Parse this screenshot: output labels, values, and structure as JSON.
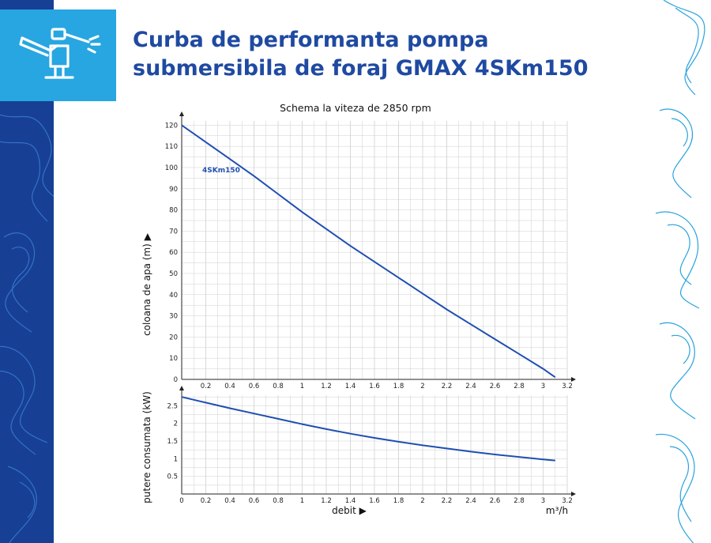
{
  "header": {
    "title_line1": "Curba de performanta pompa",
    "title_line2": "submersibila de foraj GMAX 4SKm150",
    "logo_icon": "sprinkler-icon"
  },
  "colors": {
    "title": "#1f4aa1",
    "left_strip": "#173f94",
    "logo_box": "#27a6e1",
    "contour_light": "#29a3dc",
    "curve": "#1f4fb0",
    "grid": "#cfcfcf"
  },
  "chart_data": [
    {
      "type": "line",
      "title": "Schema la viteza de 2850 rpm",
      "xlabel": "debit ▶",
      "xunit": "m³/h",
      "ylabel": "coloana de apa (m) ▶",
      "xlim": [
        0,
        3.2
      ],
      "ylim": [
        0,
        122
      ],
      "x_ticks": [
        "0.2",
        "0.4",
        "0.6",
        "0.8",
        "1",
        "1.2",
        "1.4",
        "1.6",
        "1.8",
        "2",
        "2.2",
        "2.4",
        "2.6",
        "2.8",
        "3",
        "3.2"
      ],
      "y_ticks": [
        "0",
        "10",
        "20",
        "30",
        "40",
        "50",
        "60",
        "70",
        "80",
        "90",
        "100",
        "110",
        "120"
      ],
      "grid": true,
      "series": [
        {
          "name": "4SKm150",
          "x": [
            0,
            0.2,
            0.4,
            0.6,
            0.8,
            1.0,
            1.2,
            1.4,
            1.6,
            1.8,
            2.0,
            2.2,
            2.4,
            2.6,
            2.8,
            3.0,
            3.1
          ],
          "y": [
            120,
            112,
            104,
            96,
            87.5,
            79,
            71,
            63,
            55.5,
            48,
            40.5,
            33,
            26,
            19,
            12,
            5,
            1
          ]
        }
      ]
    },
    {
      "type": "line",
      "xlabel": "debit ▶",
      "xunit": "m³/h",
      "ylabel": "putere consumata (kW)",
      "xlim": [
        0,
        3.2
      ],
      "ylim": [
        0,
        2.8
      ],
      "x_ticks": [
        "0",
        "0.2",
        "0.4",
        "0.6",
        "0.8",
        "1",
        "1.2",
        "1.4",
        "1.6",
        "1.8",
        "2",
        "2.2",
        "2.4",
        "2.6",
        "2.8",
        "3",
        "3.2"
      ],
      "y_ticks": [
        "0.5",
        "1",
        "1.5",
        "2",
        "2.5"
      ],
      "grid": true,
      "series": [
        {
          "x": [
            0,
            0.2,
            0.4,
            0.6,
            0.8,
            1.0,
            1.2,
            1.4,
            1.6,
            1.8,
            2.0,
            2.2,
            2.4,
            2.6,
            2.8,
            3.0,
            3.1
          ],
          "y": [
            2.75,
            2.59,
            2.43,
            2.28,
            2.13,
            1.98,
            1.84,
            1.71,
            1.59,
            1.48,
            1.38,
            1.29,
            1.2,
            1.12,
            1.05,
            0.98,
            0.95
          ]
        }
      ]
    }
  ]
}
